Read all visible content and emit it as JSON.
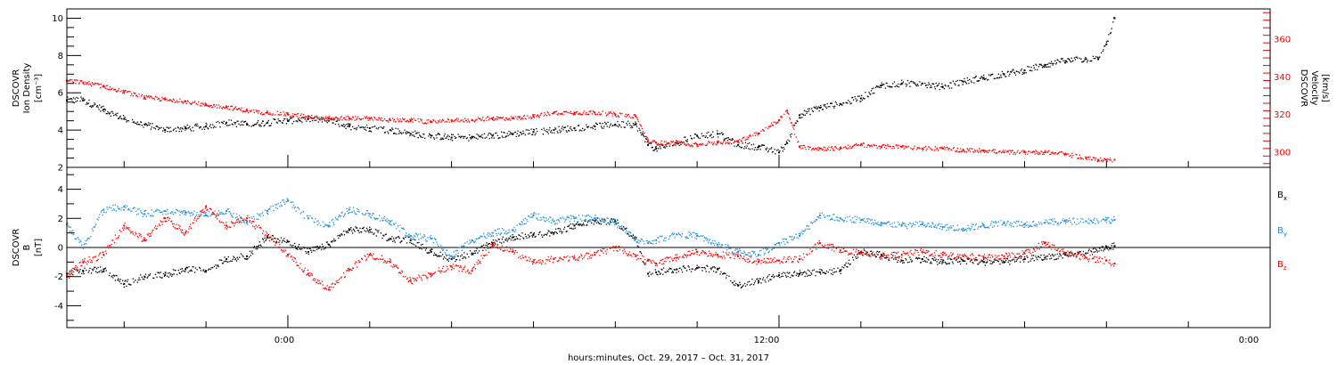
{
  "xlabel": "hours:minutes, Oct. 29, 2017 – Oct. 31, 2017",
  "x_ticks": [
    "0:00",
    "12:00",
    "0:00"
  ],
  "colors": {
    "black": "#000000",
    "red": "#ff0000",
    "blue": "#1e90dc"
  },
  "chart_data": [
    {
      "type": "scatter",
      "panel": "plasma",
      "x_unit": "hours since Oct. 30, 2017 0:00",
      "xlim": [
        -5.4,
        24
      ],
      "left_axis": {
        "label": [
          "DSCOVR",
          "Ion Density",
          "[cm⁻³]"
        ],
        "ylim": [
          2,
          10.5
        ],
        "ticks": [
          2,
          4,
          6,
          8,
          10
        ],
        "color": "#000000"
      },
      "right_axis": {
        "label": [
          "DSCOVR",
          "Velocity",
          "[km/s]"
        ],
        "ylim": [
          292,
          376
        ],
        "ticks": [
          300,
          320,
          340,
          360
        ],
        "color": "#ff0000"
      },
      "series": [
        {
          "name": "Ion Density",
          "axis": "left",
          "color": "#000000",
          "x": [
            -5.4,
            -5.0,
            -4.5,
            -4.0,
            -3.5,
            -3.0,
            -2.5,
            -2.0,
            -1.5,
            -1.0,
            -0.5,
            0.0,
            0.5,
            1.0,
            1.5,
            2.0,
            2.5,
            3.0,
            3.5,
            4.0,
            4.5,
            5.0,
            5.5,
            6.0,
            6.5,
            7.0,
            7.5,
            8.0,
            8.5,
            8.8,
            9.0,
            9.5,
            10.0,
            10.5,
            11.0,
            11.5,
            12.0,
            12.2,
            12.5,
            13.0,
            13.5,
            14.0,
            14.5,
            15.0,
            15.5,
            16.0,
            16.5,
            17.0,
            17.5,
            18.0,
            18.5,
            19.0,
            19.5,
            19.8,
            20.0,
            20.2
          ],
          "y": [
            5.6,
            5.6,
            5.1,
            4.6,
            4.3,
            4.0,
            4.1,
            4.2,
            4.4,
            4.3,
            4.4,
            4.5,
            4.6,
            4.5,
            4.2,
            4.1,
            4.0,
            3.8,
            3.7,
            3.6,
            3.6,
            3.7,
            3.8,
            3.9,
            4.0,
            4.1,
            4.2,
            4.3,
            4.3,
            3.2,
            3.0,
            3.3,
            3.7,
            3.8,
            3.2,
            3.1,
            2.8,
            3.3,
            4.8,
            5.2,
            5.4,
            5.7,
            6.4,
            6.5,
            6.5,
            6.3,
            6.6,
            6.8,
            7.0,
            7.2,
            7.5,
            7.7,
            7.8,
            7.8,
            8.6,
            10.0
          ]
        },
        {
          "name": "Velocity",
          "axis": "right",
          "color": "#ff0000",
          "x": [
            -5.4,
            -5.0,
            -4.5,
            -4.0,
            -3.5,
            -3.0,
            -2.5,
            -2.0,
            -1.5,
            -1.0,
            -0.5,
            0.0,
            0.5,
            1.0,
            1.5,
            2.0,
            2.5,
            3.0,
            3.5,
            4.0,
            4.5,
            5.0,
            5.5,
            6.0,
            6.5,
            7.0,
            7.5,
            8.0,
            8.5,
            8.8,
            9.0,
            9.5,
            10.0,
            10.5,
            11.0,
            11.5,
            12.0,
            12.2,
            12.5,
            13.0,
            13.5,
            14.0,
            14.5,
            15.0,
            15.5,
            16.0,
            16.5,
            17.0,
            17.5,
            18.0,
            18.5,
            19.0,
            19.5,
            19.8,
            20.0,
            20.2
          ],
          "y": [
            338,
            337,
            335,
            332,
            329,
            328,
            327,
            325,
            324,
            322,
            321,
            320,
            319,
            318,
            318,
            318,
            317,
            317,
            316,
            317,
            317,
            318,
            318,
            319,
            321,
            321,
            321,
            320,
            319,
            306,
            305,
            305,
            304,
            305,
            306,
            310,
            317,
            322,
            303,
            302,
            302,
            304,
            303,
            303,
            302,
            302,
            301,
            301,
            300,
            300,
            300,
            299,
            297,
            296,
            296,
            296
          ]
        }
      ]
    },
    {
      "type": "scatter",
      "panel": "magnetic field",
      "x_unit": "hours since Oct. 30, 2017 0:00",
      "xlim": [
        -5.4,
        24
      ],
      "left_axis": {
        "label": [
          "DSCOVR",
          "B",
          "[nT]"
        ],
        "ylim": [
          -5.5,
          5.5
        ],
        "ticks": [
          -4,
          -2,
          0,
          2,
          4
        ],
        "color": "#000000"
      },
      "zero_line": 0,
      "series": [
        {
          "name": "Bx",
          "color": "#000000",
          "x": [
            -5.4,
            -5.0,
            -4.5,
            -4.0,
            -3.5,
            -3.0,
            -2.5,
            -2.0,
            -1.5,
            -1.0,
            -0.5,
            0.0,
            0.5,
            1.0,
            1.5,
            2.0,
            2.5,
            3.0,
            3.5,
            4.0,
            4.5,
            5.0,
            5.5,
            6.0,
            6.5,
            7.0,
            7.5,
            8.0,
            8.5,
            8.8,
            9.0,
            9.5,
            10.0,
            10.5,
            11.0,
            11.5,
            12.0,
            12.5,
            13.0,
            13.5,
            14.0,
            14.5,
            15.0,
            15.5,
            16.0,
            16.5,
            17.0,
            17.5,
            18.0,
            18.5,
            19.0,
            19.5,
            20.0,
            20.2
          ],
          "y": [
            -1.8,
            -1.6,
            -1.5,
            -2.5,
            -2.0,
            -1.9,
            -1.5,
            -1.6,
            -0.8,
            -0.6,
            0.7,
            0.4,
            -0.3,
            0.2,
            1.2,
            1.2,
            0.6,
            0.5,
            -0.3,
            -0.8,
            -0.4,
            0.3,
            0.7,
            0.9,
            1.0,
            1.5,
            1.8,
            1.8,
            0.6,
            -1.8,
            -1.7,
            -1.5,
            -1.4,
            -1.5,
            -2.6,
            -2.3,
            -1.9,
            -1.8,
            -1.7,
            -1.6,
            -0.3,
            -0.5,
            -0.9,
            -0.8,
            -1.0,
            -0.9,
            -1.0,
            -1.0,
            -0.8,
            -0.7,
            -0.5,
            -0.4,
            0.0,
            0.1
          ]
        },
        {
          "name": "By",
          "color": "#1e90dc",
          "x": [
            -5.4,
            -5.0,
            -4.5,
            -4.0,
            -3.5,
            -3.0,
            -2.5,
            -2.0,
            -1.5,
            -1.0,
            -0.5,
            0.0,
            0.5,
            1.0,
            1.5,
            2.0,
            2.5,
            3.0,
            3.5,
            4.0,
            4.5,
            5.0,
            5.5,
            6.0,
            6.5,
            7.0,
            7.5,
            8.0,
            8.5,
            8.8,
            9.0,
            9.5,
            10.0,
            10.5,
            11.0,
            11.5,
            12.0,
            12.5,
            13.0,
            13.5,
            14.0,
            14.5,
            15.0,
            15.5,
            16.0,
            16.5,
            17.0,
            17.5,
            18.0,
            18.5,
            19.0,
            19.5,
            20.0,
            20.2
          ],
          "y": [
            1.6,
            0.0,
            2.6,
            2.8,
            2.3,
            2.5,
            2.4,
            2.2,
            2.5,
            1.7,
            2.5,
            3.2,
            2.0,
            1.5,
            2.6,
            2.3,
            1.8,
            0.8,
            0.6,
            -0.6,
            0.5,
            1.0,
            1.2,
            2.2,
            1.8,
            2.0,
            2.0,
            1.7,
            0.6,
            0.3,
            0.5,
            0.9,
            0.8,
            0.2,
            -0.3,
            -0.5,
            0.3,
            0.8,
            2.2,
            2.0,
            1.9,
            1.7,
            1.5,
            1.6,
            1.4,
            1.3,
            1.5,
            1.7,
            1.6,
            1.7,
            1.8,
            1.8,
            1.9,
            1.9
          ]
        },
        {
          "name": "Bz",
          "color": "#ff0000",
          "x": [
            -5.4,
            -5.0,
            -4.5,
            -4.0,
            -3.5,
            -3.0,
            -2.5,
            -2.0,
            -1.5,
            -1.0,
            -0.5,
            0.0,
            0.5,
            1.0,
            1.5,
            2.0,
            2.5,
            3.0,
            3.5,
            4.0,
            4.5,
            5.0,
            5.5,
            6.0,
            6.5,
            7.0,
            7.5,
            8.0,
            8.5,
            8.8,
            9.0,
            9.5,
            10.0,
            10.5,
            11.0,
            11.5,
            12.0,
            12.5,
            13.0,
            13.5,
            14.0,
            14.5,
            15.0,
            15.5,
            16.0,
            16.5,
            17.0,
            17.5,
            18.0,
            18.5,
            19.0,
            19.5,
            20.0,
            20.2
          ],
          "y": [
            -2.0,
            -1.0,
            -0.5,
            1.5,
            0.5,
            2.0,
            1.0,
            2.8,
            1.5,
            2.0,
            0.8,
            -0.5,
            -1.8,
            -2.9,
            -1.5,
            -0.5,
            -1.0,
            -2.3,
            -1.8,
            -1.3,
            -1.6,
            0.2,
            -0.3,
            -1.0,
            -0.8,
            -0.7,
            -0.5,
            0.0,
            -0.6,
            -0.9,
            -1.1,
            -0.7,
            -0.3,
            -0.5,
            -0.6,
            -1.0,
            -0.9,
            -0.8,
            0.3,
            -0.2,
            -0.4,
            -0.6,
            -0.5,
            -0.3,
            -0.5,
            -0.6,
            -0.7,
            -0.6,
            -0.4,
            0.3,
            -0.4,
            -0.7,
            -0.9,
            -1.1
          ]
        }
      ]
    }
  ]
}
